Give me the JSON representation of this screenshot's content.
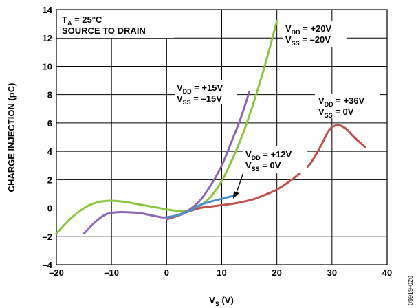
{
  "chart_data": {
    "type": "line",
    "xlabel": "V",
    "xlabel_sub": "S",
    "xlabel_unit": " (V)",
    "ylabel": "CHARGE INJECTION (pC)",
    "xlim": [
      -20,
      40
    ],
    "ylim": [
      -4,
      14
    ],
    "xticks": [
      -20,
      -10,
      0,
      10,
      20,
      30,
      40
    ],
    "xtick_labels": [
      "–20",
      "–10",
      "0",
      "10",
      "20",
      "30",
      "40"
    ],
    "yticks": [
      -4,
      -2,
      0,
      2,
      4,
      6,
      8,
      10,
      12,
      14
    ],
    "ytick_labels": [
      "–4",
      "–2",
      "0",
      "2",
      "4",
      "6",
      "8",
      "10",
      "12",
      "14"
    ],
    "grid": true,
    "conditions": {
      "line1_main": "T",
      "line1_sub": "A",
      "line1_rest": " = 25°C",
      "line2": "SOURCE TO DRAIN"
    },
    "figure_id": "09919-020",
    "series": [
      {
        "color": "#8cc63f",
        "labels": [
          [
            "V",
            "DD",
            " = +20V"
          ],
          [
            "V",
            "SS",
            " = –20V"
          ]
        ],
        "x": [
          -20,
          -17,
          -14,
          -11,
          -8,
          -5,
          -2,
          0,
          2,
          4,
          6,
          8,
          10,
          12,
          14,
          16,
          18,
          20
        ],
        "y": [
          -1.8,
          -0.6,
          0.2,
          0.5,
          0.45,
          0.25,
          0.05,
          -0.1,
          -0.2,
          -0.2,
          0.15,
          0.8,
          1.9,
          3.5,
          5.4,
          7.7,
          10.3,
          13.2
        ]
      },
      {
        "color": "#8c67b3",
        "labels": [
          [
            "V",
            "DD",
            " = +15V"
          ],
          [
            "V",
            "SS",
            " = –15V"
          ]
        ],
        "x": [
          -15,
          -13,
          -11,
          -9,
          -7,
          -5,
          -3,
          -1,
          0,
          2,
          4,
          6,
          8,
          10,
          12,
          13.5,
          15
        ],
        "y": [
          -1.8,
          -1.0,
          -0.45,
          -0.3,
          -0.3,
          -0.35,
          -0.5,
          -0.65,
          -0.65,
          -0.5,
          -0.15,
          0.5,
          1.6,
          3.0,
          4.9,
          6.4,
          8.2
        ]
      },
      {
        "color": "#c0504d",
        "labels": [
          [
            "V",
            "DD",
            " = +36V"
          ],
          [
            "V",
            "SS",
            " = 0V"
          ]
        ],
        "x": [
          0,
          2,
          4,
          6,
          8,
          10,
          12,
          14,
          16,
          18,
          20,
          22,
          24,
          26,
          28,
          29.5,
          31,
          32.5,
          34,
          36
        ],
        "y": [
          -0.8,
          -0.55,
          -0.25,
          0.0,
          0.1,
          0.2,
          0.3,
          0.45,
          0.65,
          0.95,
          1.3,
          1.8,
          2.4,
          3.1,
          4.4,
          5.5,
          5.85,
          5.6,
          5.0,
          4.3
        ]
      },
      {
        "color": "#4a8fcf",
        "labels": [
          [
            "V",
            "DD",
            " = +12V"
          ],
          [
            "V",
            "SS",
            " = 0V"
          ]
        ],
        "x": [
          0,
          1.5,
          3,
          4.5,
          6,
          8,
          10,
          12
        ],
        "y": [
          -0.7,
          -0.55,
          -0.4,
          -0.15,
          0.2,
          0.45,
          0.65,
          0.85
        ]
      }
    ]
  }
}
